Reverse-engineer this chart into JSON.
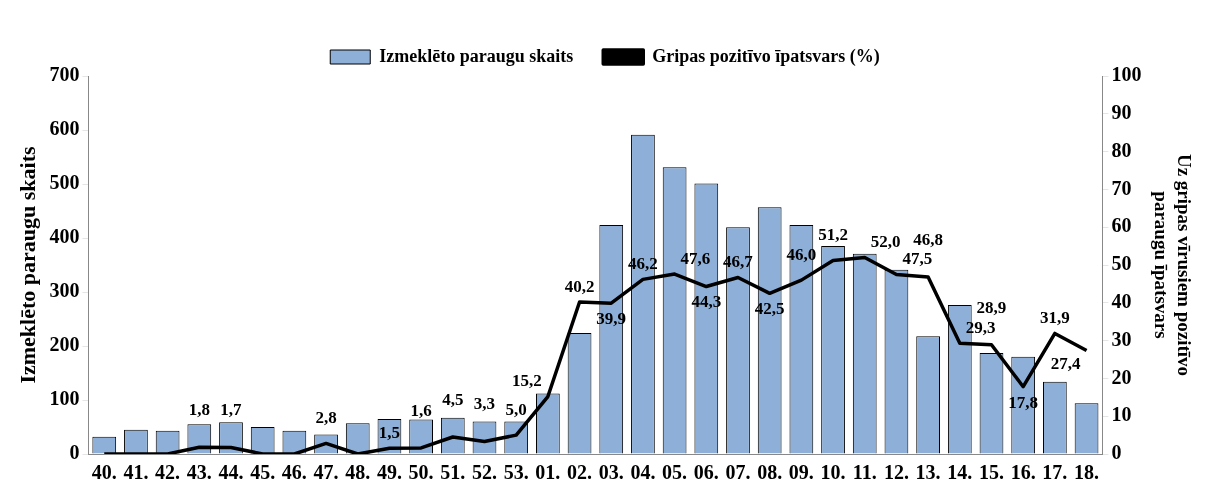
{
  "chart_data": {
    "type": "bar",
    "ylabel": "Izmeklēto paraugu skaits",
    "y2label": "Uz gripas vīrusiem pozitīvo paraugu īpatsvars",
    "categories": [
      "40.",
      "41.",
      "42.",
      "43.",
      "44.",
      "45.",
      "46.",
      "47.",
      "48.",
      "49.",
      "50.",
      "51.",
      "52.",
      "53.",
      "01.",
      "02.",
      "03.",
      "04.",
      "05.",
      "06.",
      "07.",
      "08.",
      "09.",
      "10.",
      "11.",
      "12.",
      "13.",
      "14.",
      "15.",
      "16.",
      "17.",
      "18."
    ],
    "series": [
      {
        "name": "Izmeklēto paraugu skaits",
        "type": "bar",
        "color": "#8eb0d8",
        "values": [
          32,
          45,
          43,
          55,
          59,
          50,
          43,
          36,
          57,
          65,
          64,
          67,
          60,
          60,
          112,
          224,
          424,
          591,
          531,
          501,
          420,
          457,
          424,
          385,
          371,
          341,
          218,
          276,
          187,
          180,
          134,
          94
        ]
      },
      {
        "name": "Gripas pozitīvo īpatsvars (%)",
        "type": "line",
        "axis": "y2",
        "color": "#000000",
        "marker": "none",
        "line_style": "solid",
        "values": [
          0,
          0,
          0,
          1.8,
          1.7,
          0,
          0,
          2.8,
          0,
          1.5,
          1.6,
          4.5,
          3.3,
          5.0,
          15.2,
          40.2,
          39.9,
          46.2,
          47.6,
          44.3,
          46.7,
          42.5,
          46.0,
          51.2,
          52.0,
          47.5,
          46.8,
          29.3,
          28.9,
          17.8,
          31.9,
          27.4
        ],
        "value_labels": [
          null,
          null,
          null,
          "1,8",
          "1,7",
          null,
          null,
          "2,8",
          null,
          "1,5",
          "1,6",
          "4,5",
          "3,3",
          "5,0",
          "15,2",
          "40,2",
          "39,9",
          "46,2",
          "47,6",
          "44,3",
          "46,7",
          "42,5",
          "46,0",
          "51,2",
          "52,0",
          "47,5",
          "46,8",
          "29,3",
          "28,9",
          "17,8",
          "31,9",
          "27,4"
        ]
      }
    ],
    "ylim": [
      0,
      700
    ],
    "yticks": [
      0,
      100,
      200,
      300,
      400,
      500,
      600,
      700
    ],
    "y2lim": [
      0,
      100
    ],
    "y2ticks": [
      0,
      10,
      20,
      30,
      40,
      50,
      60,
      70,
      80,
      90,
      100
    ],
    "grid": false,
    "legend": "top"
  }
}
